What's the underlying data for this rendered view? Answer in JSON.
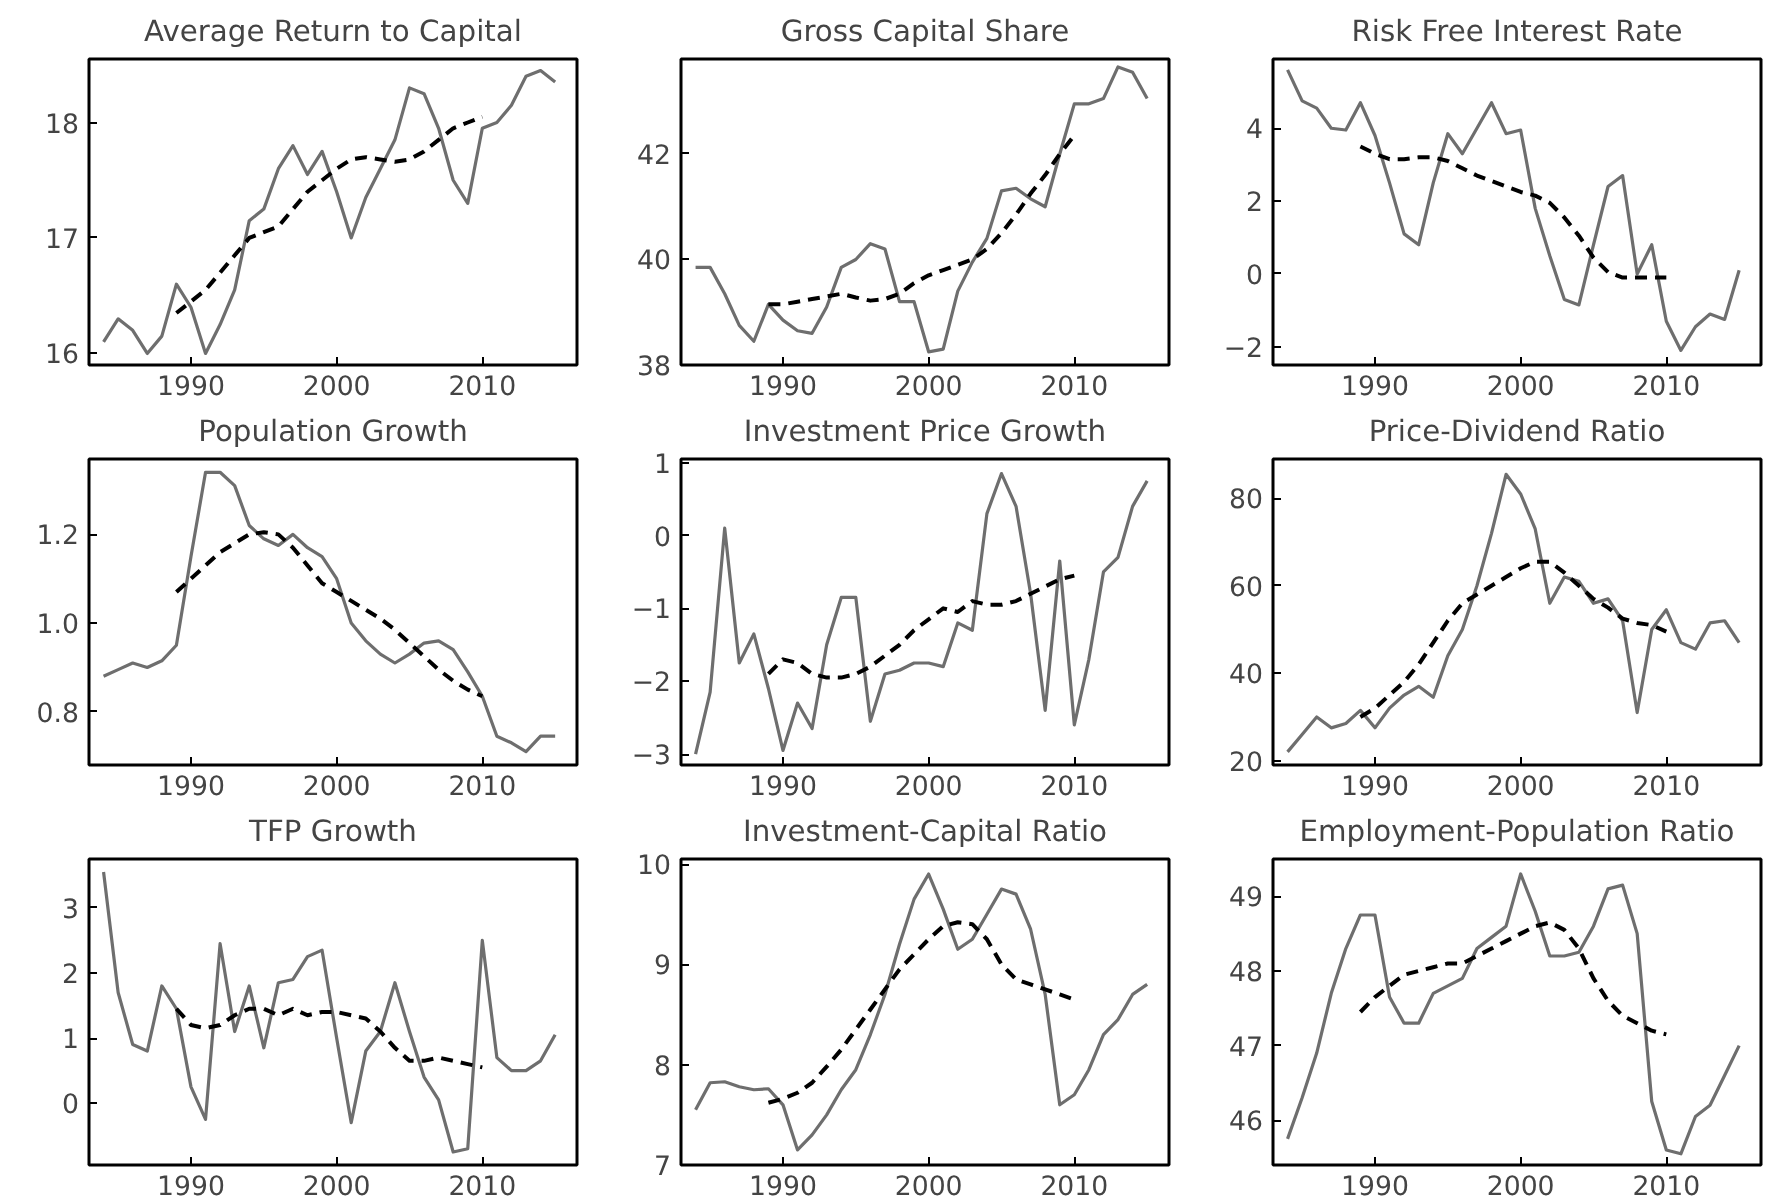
{
  "chart_data": [
    {
      "type": "line",
      "title": "Average Return to Capital",
      "xlim": [
        1983,
        2016.5
      ],
      "xticks": [
        1990,
        2000,
        2010
      ],
      "ylim": [
        15.9,
        18.55
      ],
      "yticks": [
        16,
        17,
        18
      ],
      "grid": false,
      "series": [
        {
          "color": "#6e6e6e",
          "line_style": "solid",
          "x": [
            1984,
            1985,
            1986,
            1987,
            1988,
            1989,
            1990,
            1991,
            1992,
            1993,
            1994,
            1995,
            1996,
            1997,
            1998,
            1999,
            2000,
            2001,
            2002,
            2003,
            2004,
            2005,
            2006,
            2007,
            2008,
            2009,
            2010,
            2011,
            2012,
            2013,
            2014,
            2015
          ],
          "values": [
            16.1,
            16.3,
            16.2,
            16.0,
            16.15,
            16.6,
            16.4,
            16.0,
            16.25,
            16.55,
            17.15,
            17.25,
            17.6,
            17.8,
            17.55,
            17.75,
            17.4,
            17.0,
            17.35,
            17.6,
            17.85,
            18.3,
            18.25,
            17.95,
            17.5,
            17.3,
            17.95,
            18.0,
            18.15,
            18.4,
            18.45,
            18.35
          ]
        },
        {
          "color": "#000000",
          "line_style": "dashed",
          "x": [
            1989,
            1990,
            1991,
            1992,
            1993,
            1994,
            1995,
            1996,
            1997,
            1998,
            1999,
            2000,
            2001,
            2002,
            2003,
            2004,
            2005,
            2006,
            2007,
            2008,
            2009,
            2010
          ],
          "values": [
            16.35,
            16.45,
            16.55,
            16.7,
            16.85,
            17.0,
            17.05,
            17.1,
            17.25,
            17.4,
            17.5,
            17.6,
            17.68,
            17.7,
            17.68,
            17.66,
            17.68,
            17.75,
            17.85,
            17.95,
            18.0,
            18.05
          ]
        }
      ]
    },
    {
      "type": "line",
      "title": "Gross Capital Share",
      "xlim": [
        1983,
        2016.5
      ],
      "xticks": [
        1990,
        2000,
        2010
      ],
      "ylim": [
        38,
        43.8
      ],
      "yticks": [
        38,
        40,
        42
      ],
      "grid": false,
      "series": [
        {
          "color": "#6e6e6e",
          "line_style": "solid",
          "x": [
            1984,
            1985,
            1986,
            1987,
            1988,
            1989,
            1990,
            1991,
            1992,
            1993,
            1994,
            1995,
            1996,
            1997,
            1998,
            1999,
            2000,
            2001,
            2002,
            2003,
            2004,
            2005,
            2006,
            2007,
            2008,
            2009,
            2010,
            2011,
            2012,
            2013,
            2014,
            2015
          ],
          "values": [
            39.85,
            39.85,
            39.35,
            38.75,
            38.45,
            39.15,
            38.85,
            38.65,
            38.6,
            39.1,
            39.85,
            40.0,
            40.3,
            40.2,
            39.2,
            39.2,
            38.25,
            38.3,
            39.4,
            39.95,
            40.4,
            41.3,
            41.35,
            41.15,
            41.0,
            42.0,
            42.95,
            42.95,
            43.05,
            43.65,
            43.55,
            43.05
          ]
        },
        {
          "color": "#000000",
          "line_style": "dashed",
          "x": [
            1989,
            1990,
            1991,
            1992,
            1993,
            1994,
            1995,
            1996,
            1997,
            1998,
            1999,
            2000,
            2001,
            2002,
            2003,
            2004,
            2005,
            2006,
            2007,
            2008,
            2009,
            2010
          ],
          "values": [
            39.15,
            39.15,
            39.2,
            39.25,
            39.3,
            39.35,
            39.28,
            39.22,
            39.25,
            39.35,
            39.55,
            39.7,
            39.8,
            39.9,
            40.0,
            40.2,
            40.5,
            40.85,
            41.25,
            41.6,
            42.0,
            42.35
          ]
        }
      ]
    },
    {
      "type": "line",
      "title": "Risk Free Interest Rate",
      "xlim": [
        1983,
        2016.5
      ],
      "xticks": [
        1990,
        2000,
        2010
      ],
      "ylim": [
        -2.5,
        5.9
      ],
      "yticks": [
        {
          "value": -2,
          "label": "−2"
        },
        0,
        2,
        4
      ],
      "grid": false,
      "series": [
        {
          "color": "#6e6e6e",
          "line_style": "solid",
          "x": [
            1984,
            1985,
            1986,
            1987,
            1988,
            1989,
            1990,
            1991,
            1992,
            1993,
            1994,
            1995,
            1996,
            1997,
            1998,
            1999,
            2000,
            2001,
            2002,
            2003,
            2004,
            2005,
            2006,
            2007,
            2008,
            2009,
            2010,
            2011,
            2012,
            2013,
            2014,
            2015
          ],
          "values": [
            5.6,
            4.75,
            4.55,
            4.0,
            3.95,
            4.7,
            3.8,
            2.5,
            1.1,
            0.8,
            2.5,
            3.85,
            3.3,
            4.0,
            4.7,
            3.85,
            3.95,
            1.8,
            0.5,
            -0.7,
            -0.85,
            0.8,
            2.4,
            2.7,
            0.0,
            0.8,
            -1.3,
            -2.1,
            -1.45,
            -1.1,
            -1.25,
            0.1
          ]
        },
        {
          "color": "#000000",
          "line_style": "dashed",
          "x": [
            1989,
            1990,
            1991,
            1992,
            1993,
            1994,
            1995,
            1996,
            1997,
            1998,
            1999,
            2000,
            2001,
            2002,
            2003,
            2004,
            2005,
            2006,
            2007,
            2008,
            2009,
            2010
          ],
          "values": [
            3.5,
            3.3,
            3.15,
            3.15,
            3.2,
            3.2,
            3.1,
            2.9,
            2.7,
            2.55,
            2.4,
            2.25,
            2.15,
            1.95,
            1.55,
            1.05,
            0.45,
            0.05,
            -0.1,
            -0.1,
            -0.1,
            -0.1
          ]
        }
      ]
    },
    {
      "type": "line",
      "title": "Population Growth",
      "xlim": [
        1983,
        2016.5
      ],
      "xticks": [
        1990,
        2000,
        2010
      ],
      "ylim": [
        0.68,
        1.37
      ],
      "yticks": [
        {
          "value": 0.8,
          "label": "0.8"
        },
        {
          "value": 1.0,
          "label": "1.0"
        },
        {
          "value": 1.2,
          "label": "1.2"
        }
      ],
      "grid": false,
      "series": [
        {
          "color": "#6e6e6e",
          "line_style": "solid",
          "x": [
            1984,
            1985,
            1986,
            1987,
            1988,
            1989,
            1990,
            1991,
            1992,
            1993,
            1994,
            1995,
            1996,
            1997,
            1998,
            1999,
            2000,
            2001,
            2002,
            2003,
            2004,
            2005,
            2006,
            2007,
            2008,
            2009,
            2010,
            2011,
            2012,
            2013,
            2014,
            2015
          ],
          "values": [
            0.88,
            0.895,
            0.91,
            0.9,
            0.915,
            0.95,
            1.15,
            1.34,
            1.34,
            1.31,
            1.22,
            1.19,
            1.175,
            1.2,
            1.17,
            1.15,
            1.1,
            1.0,
            0.96,
            0.93,
            0.91,
            0.93,
            0.955,
            0.96,
            0.94,
            0.89,
            0.835,
            0.745,
            0.73,
            0.71,
            0.745,
            0.745
          ]
        },
        {
          "color": "#000000",
          "line_style": "dashed",
          "x": [
            1989,
            1990,
            1991,
            1992,
            1993,
            1994,
            1995,
            1996,
            1997,
            1998,
            1999,
            2000,
            2001,
            2002,
            2003,
            2004,
            2005,
            2006,
            2007,
            2008,
            2009,
            2010
          ],
          "values": [
            1.07,
            1.1,
            1.13,
            1.16,
            1.18,
            1.2,
            1.205,
            1.2,
            1.17,
            1.13,
            1.09,
            1.07,
            1.05,
            1.03,
            1.01,
            0.985,
            0.955,
            0.925,
            0.895,
            0.87,
            0.85,
            0.835
          ]
        }
      ]
    },
    {
      "type": "line",
      "title": "Investment Price Growth",
      "xlim": [
        1983,
        2016.5
      ],
      "xticks": [
        1990,
        2000,
        2010
      ],
      "ylim": [
        -3.15,
        1.05
      ],
      "yticks": [
        {
          "value": -3,
          "label": "−3"
        },
        {
          "value": -2,
          "label": "−2"
        },
        {
          "value": -1,
          "label": "−1"
        },
        0,
        1
      ],
      "grid": false,
      "series": [
        {
          "color": "#6e6e6e",
          "line_style": "solid",
          "x": [
            1984,
            1985,
            1986,
            1987,
            1988,
            1989,
            1990,
            1991,
            1992,
            1993,
            1994,
            1995,
            1996,
            1997,
            1998,
            1999,
            2000,
            2001,
            2002,
            2003,
            2004,
            2005,
            2006,
            2007,
            2008,
            2009,
            2010,
            2011,
            2012,
            2013,
            2014,
            2015
          ],
          "values": [
            -3.0,
            -2.15,
            0.1,
            -1.75,
            -1.35,
            -2.1,
            -2.95,
            -2.3,
            -2.65,
            -1.5,
            -0.85,
            -0.85,
            -2.55,
            -1.9,
            -1.85,
            -1.75,
            -1.75,
            -1.8,
            -1.2,
            -1.3,
            0.3,
            0.85,
            0.4,
            -0.8,
            -2.4,
            -0.35,
            -2.6,
            -1.7,
            -0.5,
            -0.3,
            0.4,
            0.75
          ]
        },
        {
          "color": "#000000",
          "line_style": "dashed",
          "x": [
            1989,
            1990,
            1991,
            1992,
            1993,
            1994,
            1995,
            1996,
            1997,
            1998,
            1999,
            2000,
            2001,
            2002,
            2003,
            2004,
            2005,
            2006,
            2007,
            2008,
            2009,
            2010
          ],
          "values": [
            -1.9,
            -1.7,
            -1.75,
            -1.9,
            -1.95,
            -1.95,
            -1.9,
            -1.8,
            -1.65,
            -1.5,
            -1.3,
            -1.15,
            -1.0,
            -1.05,
            -0.9,
            -0.95,
            -0.95,
            -0.9,
            -0.8,
            -0.7,
            -0.6,
            -0.55
          ]
        }
      ]
    },
    {
      "type": "line",
      "title": "Price-Dividend Ratio",
      "xlim": [
        1983,
        2016.5
      ],
      "xticks": [
        1990,
        2000,
        2010
      ],
      "ylim": [
        19,
        89
      ],
      "yticks": [
        20,
        40,
        60,
        80
      ],
      "grid": false,
      "series": [
        {
          "color": "#6e6e6e",
          "line_style": "solid",
          "x": [
            1984,
            1985,
            1986,
            1987,
            1988,
            1989,
            1990,
            1991,
            1992,
            1993,
            1994,
            1995,
            1996,
            1997,
            1998,
            1999,
            2000,
            2001,
            2002,
            2003,
            2004,
            2005,
            2006,
            2007,
            2008,
            2009,
            2010,
            2011,
            2012,
            2013,
            2014,
            2015
          ],
          "values": [
            22,
            26,
            30,
            27.5,
            28.5,
            31.5,
            27.5,
            32,
            35,
            37,
            34.5,
            44,
            50,
            60,
            72,
            85.5,
            81,
            73,
            56,
            62,
            61,
            56,
            57,
            52,
            31,
            50,
            54.5,
            47,
            45.5,
            51.5,
            52,
            47
          ]
        },
        {
          "color": "#000000",
          "line_style": "dashed",
          "x": [
            1989,
            1990,
            1991,
            1992,
            1993,
            1994,
            1995,
            1996,
            1997,
            1998,
            1999,
            2000,
            2001,
            2002,
            2003,
            2004,
            2005,
            2006,
            2007,
            2008,
            2009,
            2010
          ],
          "values": [
            30,
            32,
            35,
            38,
            42,
            47,
            52,
            56,
            58,
            60,
            62,
            64,
            65.5,
            65.5,
            63,
            60,
            57,
            55,
            52.5,
            51.5,
            51,
            49.5
          ]
        }
      ]
    },
    {
      "type": "line",
      "title": "TFP Growth",
      "xlim": [
        1983,
        2016.5
      ],
      "xticks": [
        1990,
        2000,
        2010
      ],
      "ylim": [
        -0.95,
        3.75
      ],
      "yticks": [
        0,
        1,
        2,
        3
      ],
      "grid": false,
      "series": [
        {
          "color": "#6e6e6e",
          "line_style": "solid",
          "x": [
            1984,
            1985,
            1986,
            1987,
            1988,
            1989,
            1990,
            1991,
            1992,
            1993,
            1994,
            1995,
            1996,
            1997,
            1998,
            1999,
            2000,
            2001,
            2002,
            2003,
            2004,
            2005,
            2006,
            2007,
            2008,
            2009,
            2010,
            2011,
            2012,
            2013,
            2014,
            2015
          ],
          "values": [
            3.55,
            1.7,
            0.9,
            0.8,
            1.8,
            1.45,
            0.25,
            -0.25,
            2.45,
            1.1,
            1.8,
            0.85,
            1.85,
            1.9,
            2.25,
            2.35,
            1.0,
            -0.3,
            0.8,
            1.1,
            1.85,
            1.1,
            0.4,
            0.05,
            -0.75,
            -0.7,
            2.5,
            0.7,
            0.5,
            0.5,
            0.65,
            1.05
          ]
        },
        {
          "color": "#000000",
          "line_style": "dashed",
          "x": [
            1989,
            1990,
            1991,
            1992,
            1993,
            1994,
            1995,
            1996,
            1997,
            1998,
            1999,
            2000,
            2001,
            2002,
            2003,
            2004,
            2005,
            2006,
            2007,
            2008,
            2009,
            2010
          ],
          "values": [
            1.45,
            1.2,
            1.15,
            1.2,
            1.35,
            1.45,
            1.45,
            1.35,
            1.45,
            1.35,
            1.4,
            1.4,
            1.35,
            1.3,
            1.1,
            0.85,
            0.65,
            0.65,
            0.7,
            0.65,
            0.6,
            0.55
          ]
        }
      ]
    },
    {
      "type": "line",
      "title": "Investment-Capital Ratio",
      "xlim": [
        1983,
        2016.5
      ],
      "xticks": [
        1990,
        2000,
        2010
      ],
      "ylim": [
        7,
        10.05
      ],
      "yticks": [
        7,
        8,
        9,
        10
      ],
      "grid": false,
      "series": [
        {
          "color": "#6e6e6e",
          "line_style": "solid",
          "x": [
            1984,
            1985,
            1986,
            1987,
            1988,
            1989,
            1990,
            1991,
            1992,
            1993,
            1994,
            1995,
            1996,
            1997,
            1998,
            1999,
            2000,
            2001,
            2002,
            2003,
            2004,
            2005,
            2006,
            2007,
            2008,
            2009,
            2010,
            2011,
            2012,
            2013,
            2014,
            2015
          ],
          "values": [
            7.55,
            7.82,
            7.83,
            7.78,
            7.75,
            7.76,
            7.6,
            7.15,
            7.3,
            7.5,
            7.75,
            7.95,
            8.3,
            8.7,
            9.2,
            9.65,
            9.9,
            9.55,
            9.15,
            9.25,
            9.5,
            9.75,
            9.7,
            9.35,
            8.7,
            7.6,
            7.7,
            7.95,
            8.3,
            8.45,
            8.7,
            8.8
          ]
        },
        {
          "color": "#000000",
          "line_style": "dashed",
          "x": [
            1989,
            1990,
            1991,
            1992,
            1993,
            1994,
            1995,
            1996,
            1997,
            1998,
            1999,
            2000,
            2001,
            2002,
            2003,
            2004,
            2005,
            2006,
            2007,
            2008,
            2009,
            2010
          ],
          "values": [
            7.62,
            7.66,
            7.72,
            7.82,
            7.98,
            8.15,
            8.35,
            8.55,
            8.75,
            8.95,
            9.1,
            9.25,
            9.38,
            9.42,
            9.4,
            9.25,
            9.0,
            8.85,
            8.8,
            8.75,
            8.7,
            8.65
          ]
        }
      ]
    },
    {
      "type": "line",
      "title": "Employment-Population Ratio",
      "xlim": [
        1983,
        2016.5
      ],
      "xticks": [
        1990,
        2000,
        2010
      ],
      "ylim": [
        45.4,
        49.5
      ],
      "yticks": [
        46,
        47,
        48,
        49
      ],
      "grid": false,
      "series": [
        {
          "color": "#6e6e6e",
          "line_style": "solid",
          "x": [
            1984,
            1985,
            1986,
            1987,
            1988,
            1989,
            1990,
            1991,
            1992,
            1993,
            1994,
            1995,
            1996,
            1997,
            1998,
            1999,
            2000,
            2001,
            2002,
            2003,
            2004,
            2005,
            2006,
            2007,
            2008,
            2009,
            2010,
            2011,
            2012,
            2013,
            2014,
            2015
          ],
          "values": [
            45.75,
            46.3,
            46.9,
            47.7,
            48.3,
            48.75,
            48.75,
            47.65,
            47.3,
            47.3,
            47.7,
            47.8,
            47.9,
            48.3,
            48.45,
            48.6,
            49.3,
            48.8,
            48.2,
            48.2,
            48.25,
            48.6,
            49.1,
            49.15,
            48.5,
            46.25,
            45.6,
            45.55,
            46.05,
            46.2,
            46.6,
            47.0
          ]
        },
        {
          "color": "#000000",
          "line_style": "dashed",
          "x": [
            1989,
            1990,
            1991,
            1992,
            1993,
            1994,
            1995,
            1996,
            1997,
            1998,
            1999,
            2000,
            2001,
            2002,
            2003,
            2004,
            2005,
            2006,
            2007,
            2008,
            2009,
            2010
          ],
          "values": [
            47.45,
            47.65,
            47.8,
            47.95,
            48.0,
            48.05,
            48.1,
            48.1,
            48.2,
            48.3,
            48.4,
            48.5,
            48.6,
            48.65,
            48.55,
            48.3,
            47.9,
            47.6,
            47.4,
            47.3,
            47.2,
            47.15
          ]
        }
      ]
    }
  ]
}
